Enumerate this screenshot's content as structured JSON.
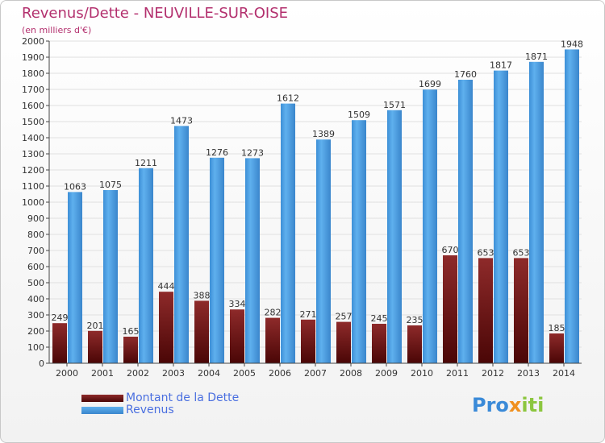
{
  "title": "Revenus/Dette - NEUVILLE-SUR-OISE",
  "subtitle": "(en milliers d'€)",
  "logo": {
    "parts": [
      "Pro",
      "x",
      "iti"
    ]
  },
  "colors": {
    "dette": "#7a1a1a",
    "revenus": "#4aa0e6",
    "title": "#b3306e",
    "legend_text": "#4a6fe0"
  },
  "chart_data": {
    "type": "bar",
    "title": "Revenus/Dette - NEUVILLE-SUR-OISE",
    "ylabel": "(en milliers d'€)",
    "ylim": [
      0,
      2000
    ],
    "yticks": [
      0,
      100,
      200,
      300,
      400,
      500,
      600,
      700,
      800,
      900,
      1000,
      1100,
      1200,
      1300,
      1400,
      1500,
      1600,
      1700,
      1800,
      1900,
      2000
    ],
    "categories": [
      "2000",
      "2001",
      "2002",
      "2003",
      "2004",
      "2005",
      "2006",
      "2007",
      "2008",
      "2009",
      "2010",
      "2011",
      "2012",
      "2013",
      "2014"
    ],
    "series": [
      {
        "name": "Montant de la Dette",
        "values": [
          249,
          201,
          165,
          444,
          388,
          334,
          282,
          271,
          257,
          245,
          235,
          670,
          653,
          653,
          185
        ]
      },
      {
        "name": "Revenus",
        "values": [
          1063,
          1075,
          1211,
          1473,
          1276,
          1273,
          1612,
          1389,
          1509,
          1571,
          1699,
          1760,
          1817,
          1871,
          1948
        ]
      }
    ],
    "legend_position": "bottom-left",
    "grid": true
  }
}
